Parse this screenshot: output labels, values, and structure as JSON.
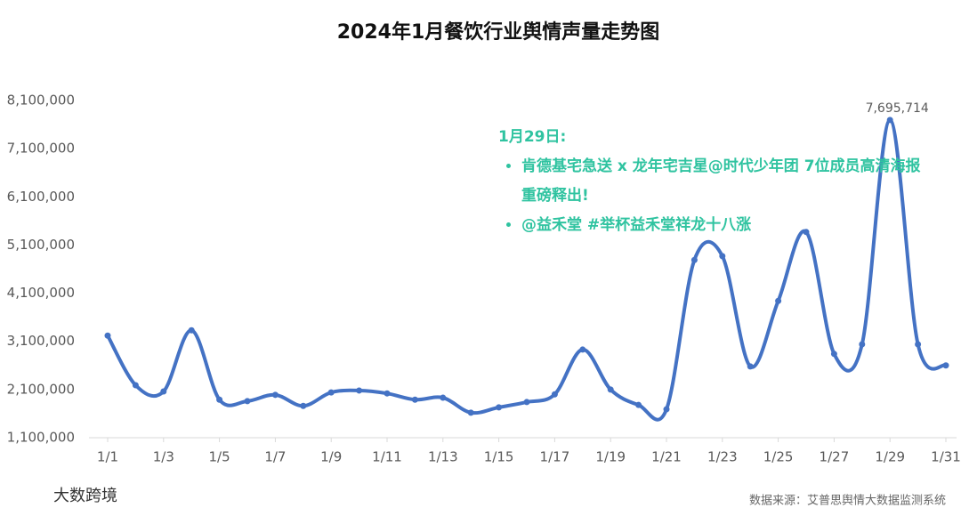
{
  "chart_data": {
    "type": "line",
    "title": "2024年1月餐饮行业舆情声量走势图",
    "categories": [
      "1/1",
      null,
      "1/3",
      null,
      "1/5",
      null,
      "1/7",
      null,
      "1/9",
      null,
      "1/11",
      null,
      "1/13",
      null,
      "1/15",
      null,
      "1/17",
      null,
      "1/19",
      null,
      "1/21",
      null,
      "1/23",
      null,
      "1/25",
      null,
      "1/27",
      null,
      "1/29",
      null,
      "1/31"
    ],
    "values": [
      3220000,
      2190000,
      2060000,
      3330000,
      1890000,
      1860000,
      1990000,
      1760000,
      2040000,
      2080000,
      2020000,
      1890000,
      1930000,
      1620000,
      1730000,
      1840000,
      2000000,
      2930000,
      2100000,
      1780000,
      1690000,
      4790000,
      4870000,
      2580000,
      3940000,
      5370000,
      2840000,
      3040000,
      7695714,
      3040000,
      2600000
    ],
    "value_labels": [
      null,
      null,
      null,
      null,
      null,
      null,
      null,
      null,
      null,
      null,
      null,
      null,
      null,
      null,
      null,
      null,
      null,
      null,
      null,
      null,
      null,
      null,
      null,
      null,
      null,
      null,
      null,
      null,
      "7,695,714",
      null,
      null
    ],
    "color": "#4472c4",
    "ylim": [
      1100000,
      8100000
    ],
    "yticks": [
      {
        "value": 1100000,
        "label": "1,100,000"
      },
      {
        "value": 2100000,
        "label": "2,100,000"
      },
      {
        "value": 3100000,
        "label": "3,100,000"
      },
      {
        "value": 4100000,
        "label": "4,100,000"
      },
      {
        "value": 5100000,
        "label": "5,100,000"
      },
      {
        "value": 6100000,
        "label": "6,100,000"
      },
      {
        "value": 7100000,
        "label": "7,100,000"
      },
      {
        "value": 8100000,
        "label": "8,100,000"
      }
    ],
    "annotation": {
      "title": "1月29日:",
      "items": [
        "肯德基宅急送 x 龙年宅吉星@时代少年团 7位成员高清海报重磅释出!",
        "@益禾堂 #举杯益禾堂祥龙十八涨"
      ]
    },
    "source": "数据来源：艾普思舆情大数据监测系统",
    "logo": "大数跨境"
  }
}
